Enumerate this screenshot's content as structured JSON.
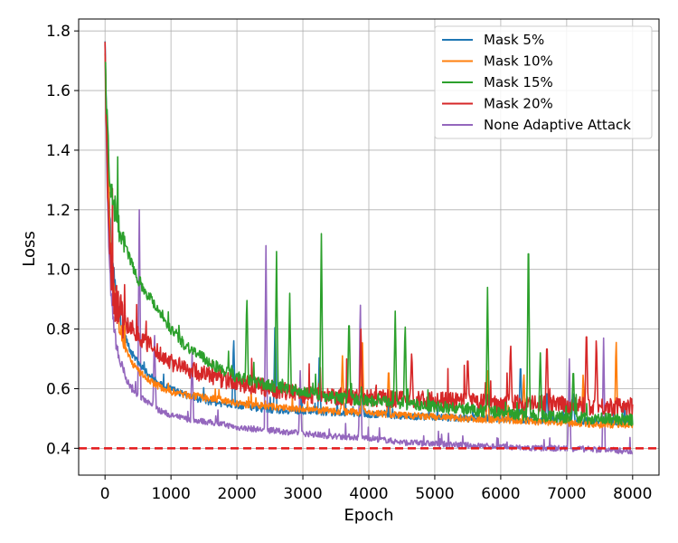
{
  "chart_data": {
    "type": "line",
    "title": "",
    "xlabel": "Epoch",
    "ylabel": "Loss",
    "xlim": [
      -400,
      8400
    ],
    "ylim": [
      0.31,
      1.84
    ],
    "xticks": [
      0,
      1000,
      2000,
      3000,
      4000,
      5000,
      6000,
      7000,
      8000
    ],
    "yticks": [
      0.4,
      0.6,
      0.8,
      1.0,
      1.2,
      1.4,
      1.6,
      1.8
    ],
    "xtick_labels": [
      "0",
      "1000",
      "2000",
      "3000",
      "4000",
      "5000",
      "6000",
      "7000",
      "8000"
    ],
    "ytick_labels": [
      "0.4",
      "0.6",
      "0.8",
      "1.0",
      "1.2",
      "1.4",
      "1.6",
      "1.8"
    ],
    "grid": true,
    "legend_position": "top-right",
    "reference_line": {
      "y": 0.4,
      "color": "#e41a1c",
      "style": "dashed"
    },
    "series": [
      {
        "name": "Mask 5%",
        "color": "#1f77b4",
        "x": [
          0,
          30,
          60,
          100,
          150,
          200,
          300,
          400,
          500,
          600,
          800,
          1000,
          1200,
          1500,
          1800,
          2000,
          2500,
          3000,
          3500,
          4000,
          4500,
          5000,
          5500,
          6000,
          6500,
          7000,
          7500,
          8000
        ],
        "y": [
          1.77,
          1.45,
          1.22,
          1.06,
          0.95,
          0.87,
          0.78,
          0.72,
          0.69,
          0.66,
          0.62,
          0.6,
          0.58,
          0.56,
          0.55,
          0.545,
          0.53,
          0.525,
          0.52,
          0.515,
          0.51,
          0.505,
          0.5,
          0.5,
          0.495,
          0.495,
          0.49,
          0.49
        ],
        "noise": 0.012,
        "spikes": [
          [
            1950,
            0.78
          ],
          [
            2580,
            0.86
          ],
          [
            3250,
            0.72
          ],
          [
            3900,
            0.62
          ],
          [
            6300,
            0.7
          ],
          [
            6700,
            0.6
          ],
          [
            7100,
            0.6
          ]
        ]
      },
      {
        "name": "Mask 10%",
        "color": "#ff7f0e",
        "x": [
          0,
          30,
          60,
          100,
          150,
          200,
          300,
          400,
          500,
          600,
          800,
          1000,
          1200,
          1500,
          1800,
          2000,
          2500,
          3000,
          3500,
          4000,
          4500,
          5000,
          5500,
          6000,
          6500,
          7000,
          7500,
          8000
        ],
        "y": [
          1.75,
          1.42,
          1.2,
          1.03,
          0.9,
          0.83,
          0.74,
          0.69,
          0.66,
          0.64,
          0.61,
          0.59,
          0.58,
          0.57,
          0.56,
          0.55,
          0.54,
          0.53,
          0.525,
          0.52,
          0.51,
          0.505,
          0.5,
          0.495,
          0.49,
          0.485,
          0.48,
          0.48
        ],
        "noise": 0.012,
        "spikes": [
          [
            3900,
            0.8
          ],
          [
            3600,
            0.71
          ],
          [
            4300,
            0.68
          ],
          [
            5800,
            0.66
          ],
          [
            6350,
            0.66
          ],
          [
            7250,
            0.66
          ],
          [
            7750,
            0.78
          ]
        ]
      },
      {
        "name": "Mask 15%",
        "color": "#2ca02c",
        "x": [
          0,
          30,
          60,
          100,
          150,
          200,
          300,
          400,
          500,
          600,
          800,
          1000,
          1200,
          1500,
          1800,
          2000,
          2500,
          3000,
          3500,
          4000,
          4500,
          5000,
          5500,
          6000,
          6500,
          7000,
          7500,
          8000
        ],
        "y": [
          1.73,
          1.5,
          1.35,
          1.26,
          1.2,
          1.15,
          1.08,
          1.02,
          0.97,
          0.93,
          0.87,
          0.8,
          0.75,
          0.7,
          0.66,
          0.64,
          0.61,
          0.59,
          0.57,
          0.56,
          0.55,
          0.54,
          0.53,
          0.52,
          0.51,
          0.505,
          0.5,
          0.495
        ],
        "noise": 0.02,
        "spikes": [
          [
            2150,
            0.92
          ],
          [
            2600,
            1.06
          ],
          [
            2800,
            0.92
          ],
          [
            3280,
            1.12
          ],
          [
            3700,
            0.86
          ],
          [
            4400,
            0.86
          ],
          [
            4550,
            0.83
          ],
          [
            5800,
            0.94
          ],
          [
            6420,
            1.16
          ],
          [
            6600,
            0.72
          ],
          [
            7100,
            0.68
          ]
        ]
      },
      {
        "name": "Mask 20%",
        "color": "#d62728",
        "x": [
          0,
          30,
          60,
          100,
          150,
          200,
          300,
          400,
          500,
          600,
          800,
          1000,
          1200,
          1500,
          1800,
          2000,
          2500,
          3000,
          3500,
          4000,
          4500,
          5000,
          5500,
          6000,
          6500,
          7000,
          7500,
          8000
        ],
        "y": [
          1.74,
          1.35,
          1.12,
          0.98,
          0.9,
          0.86,
          0.82,
          0.8,
          0.78,
          0.76,
          0.72,
          0.69,
          0.67,
          0.65,
          0.63,
          0.62,
          0.6,
          0.58,
          0.575,
          0.57,
          0.565,
          0.56,
          0.555,
          0.55,
          0.55,
          0.545,
          0.54,
          0.54
        ],
        "noise": 0.03,
        "spikes": [
          [
            3880,
            0.8
          ],
          [
            4650,
            0.73
          ],
          [
            5500,
            0.72
          ],
          [
            6150,
            0.76
          ],
          [
            6700,
            0.77
          ],
          [
            7300,
            0.82
          ],
          [
            7450,
            0.78
          ]
        ]
      },
      {
        "name": "None Adaptive Attack",
        "color": "#9467bd",
        "x": [
          0,
          30,
          60,
          100,
          150,
          200,
          300,
          400,
          500,
          600,
          800,
          1000,
          1200,
          1500,
          1800,
          2000,
          2500,
          3000,
          3500,
          4000,
          4500,
          5000,
          5500,
          6000,
          6500,
          7000,
          7500,
          8000
        ],
        "y": [
          1.78,
          1.3,
          1.05,
          0.88,
          0.78,
          0.71,
          0.64,
          0.6,
          0.58,
          0.56,
          0.53,
          0.51,
          0.5,
          0.49,
          0.48,
          0.47,
          0.46,
          0.45,
          0.44,
          0.435,
          0.42,
          0.415,
          0.41,
          0.405,
          0.4,
          0.4,
          0.395,
          0.39
        ],
        "noise": 0.01,
        "spikes": [
          [
            520,
            1.2
          ],
          [
            750,
            0.8
          ],
          [
            1320,
            0.72
          ],
          [
            2440,
            1.08
          ],
          [
            2960,
            0.66
          ],
          [
            3870,
            0.92
          ],
          [
            7040,
            0.7
          ],
          [
            7560,
            0.77
          ]
        ]
      }
    ]
  }
}
